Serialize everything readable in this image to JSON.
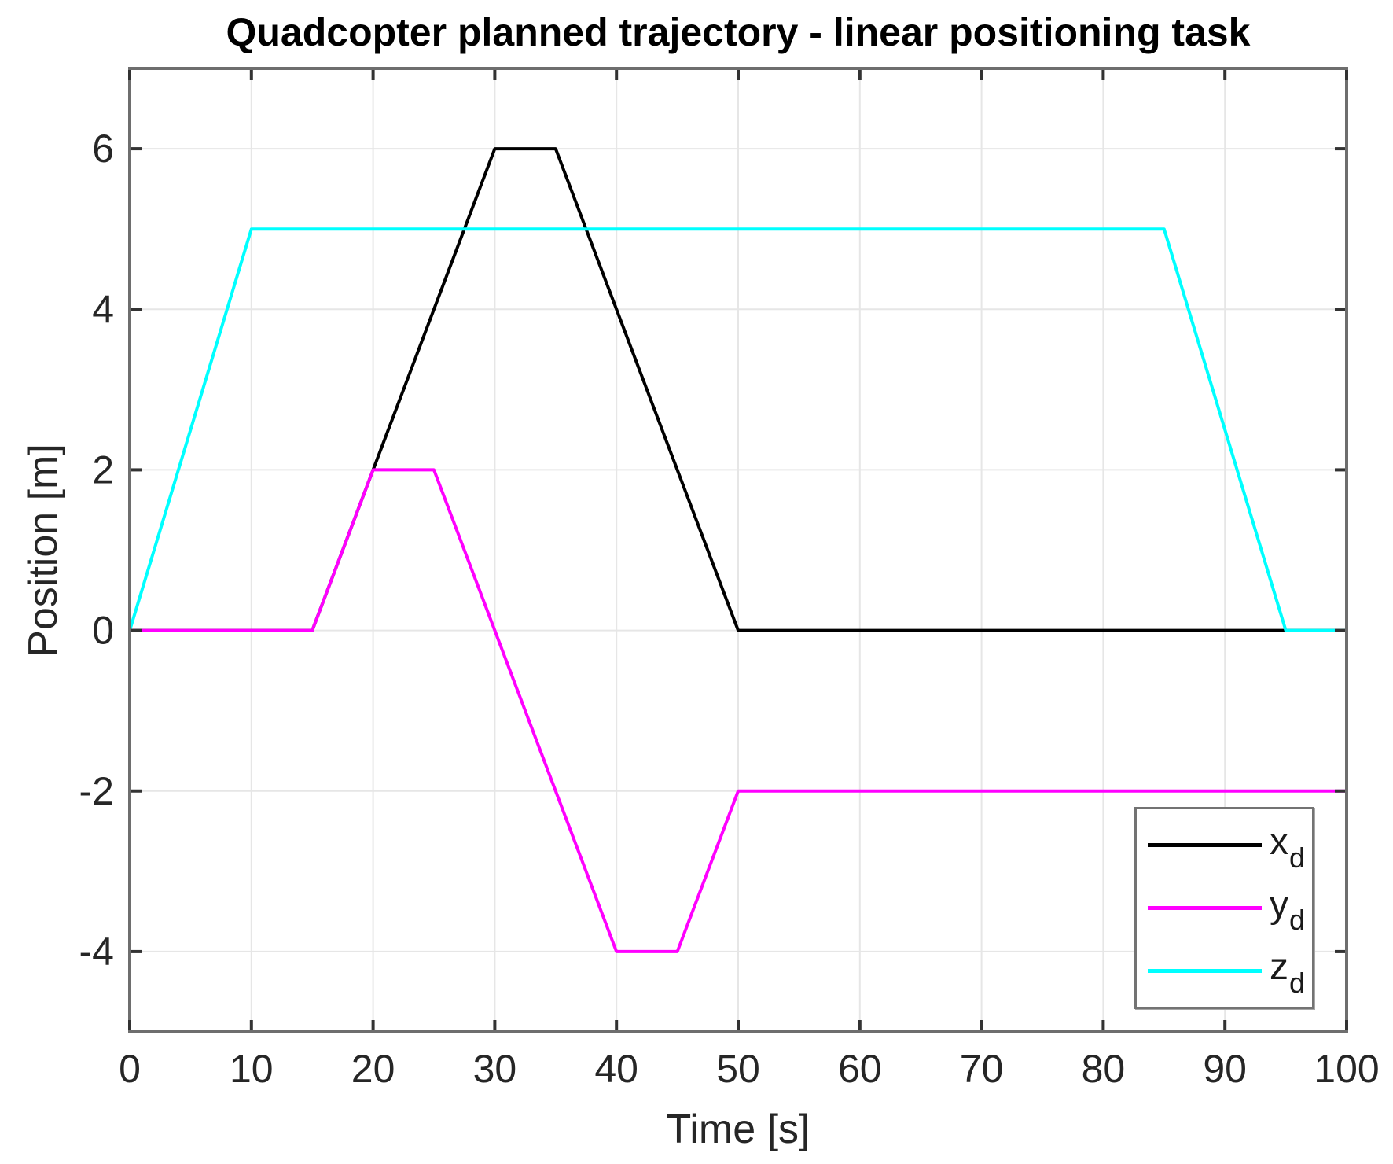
{
  "window": {
    "background": "#ffffff"
  },
  "chart_data": {
    "type": "line",
    "title": "Quadcopter planned trajectory - linear positioning task",
    "xlabel": "Time [s]",
    "ylabel": "Position [m]",
    "xlim": [
      0,
      100
    ],
    "ylim": [
      -5,
      7
    ],
    "xticks": [
      0,
      10,
      20,
      30,
      40,
      50,
      60,
      70,
      80,
      90,
      100
    ],
    "yticks": [
      -4,
      -2,
      0,
      2,
      4,
      6
    ],
    "grid": "on",
    "legend_position": "bottom-right",
    "legend": {
      "entries": [
        {
          "main": "x",
          "sub": "d",
          "color": "#000000"
        },
        {
          "main": "y",
          "sub": "d",
          "color": "#ff00ff"
        },
        {
          "main": "z",
          "sub": "d",
          "color": "#00ffff"
        }
      ]
    },
    "series": [
      {
        "name": "x_d",
        "color": "#000000",
        "points": [
          [
            0,
            0
          ],
          [
            15,
            0
          ],
          [
            30,
            6
          ],
          [
            35,
            6
          ],
          [
            50,
            0
          ],
          [
            100,
            0
          ]
        ]
      },
      {
        "name": "y_d",
        "color": "#ff00ff",
        "points": [
          [
            0,
            0
          ],
          [
            15,
            0
          ],
          [
            20,
            2
          ],
          [
            25,
            2
          ],
          [
            40,
            -4
          ],
          [
            45,
            -4
          ],
          [
            50,
            -2
          ],
          [
            100,
            -2
          ]
        ]
      },
      {
        "name": "z_d",
        "color": "#00ffff",
        "points": [
          [
            0,
            0
          ],
          [
            10,
            5
          ],
          [
            85,
            5
          ],
          [
            95,
            0
          ],
          [
            100,
            0
          ]
        ]
      }
    ],
    "style": {
      "grid_color": "#e6e6e6",
      "axis_color": "#6e6e6e",
      "tick_color": "#333333",
      "tick_label_color": "#262626",
      "line_width": 4,
      "legend_border_color": "#737373"
    }
  }
}
